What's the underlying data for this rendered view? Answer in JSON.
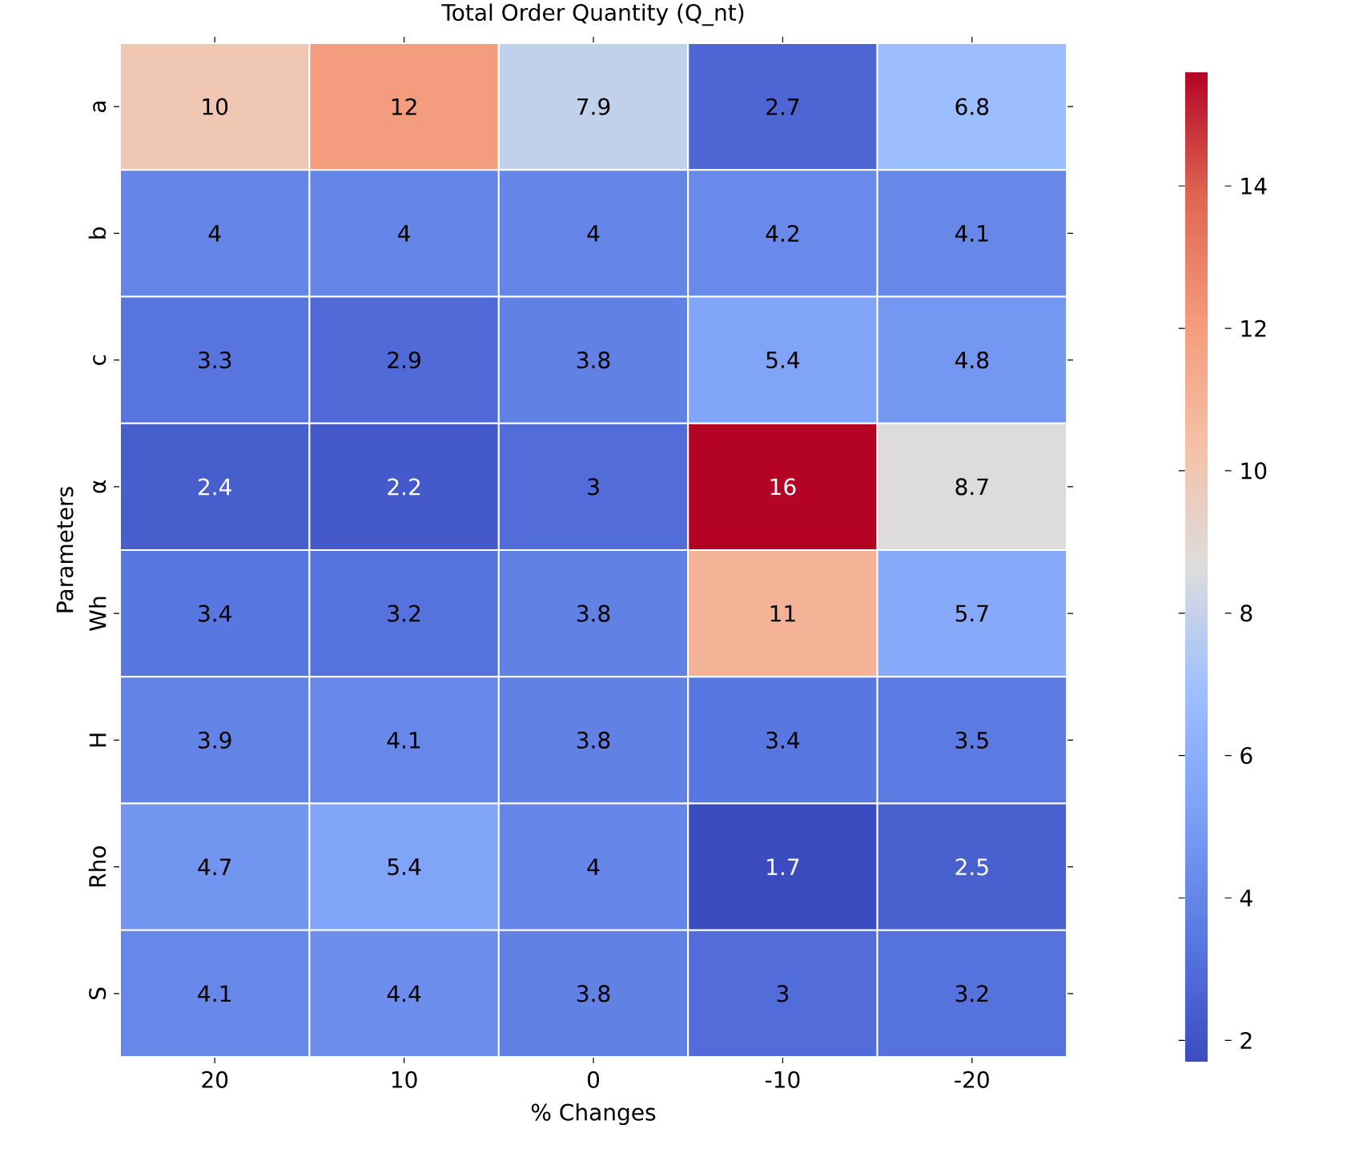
{
  "chart_data": {
    "type": "heatmap",
    "title": "Total Order Quantity (Q_nt)",
    "xlabel": "% Changes",
    "ylabel": "Parameters",
    "categories": [
      "20",
      "10",
      "0",
      "-10",
      "-20"
    ],
    "y_categories": [
      "a",
      "b",
      "c",
      "α",
      "Wh",
      "H",
      "Rho",
      "S"
    ],
    "cells": [
      [
        10,
        12,
        7.9,
        2.7,
        6.8
      ],
      [
        4,
        4,
        4,
        4.2,
        4.1
      ],
      [
        3.3,
        2.9,
        3.8,
        5.4,
        4.8
      ],
      [
        2.4,
        2.2,
        3,
        15.6,
        8.7
      ],
      [
        3.4,
        3.2,
        3.8,
        11,
        5.7
      ],
      [
        3.9,
        4.1,
        3.8,
        3.4,
        3.5
      ],
      [
        4.7,
        5.4,
        4,
        1.7,
        2.5
      ],
      [
        4.1,
        4.4,
        3.8,
        3,
        3.2
      ]
    ],
    "cell_labels": [
      [
        "10",
        "12",
        "7.9",
        "2.7",
        "6.8"
      ],
      [
        "4",
        "4",
        "4",
        "4.2",
        "4.1"
      ],
      [
        "3.3",
        "2.9",
        "3.8",
        "5.4",
        "4.8"
      ],
      [
        "2.4",
        "2.2",
        "3",
        "16",
        "8.7"
      ],
      [
        "3.4",
        "3.2",
        "3.8",
        "11",
        "5.7"
      ],
      [
        "3.9",
        "4.1",
        "3.8",
        "3.4",
        "3.5"
      ],
      [
        "4.7",
        "5.4",
        "4",
        "1.7",
        "2.5"
      ],
      [
        "4.1",
        "4.4",
        "3.8",
        "3",
        "3.2"
      ]
    ],
    "clim": [
      1.7,
      15.6
    ],
    "cticks": [
      2,
      4,
      6,
      8,
      10,
      12,
      14
    ]
  }
}
